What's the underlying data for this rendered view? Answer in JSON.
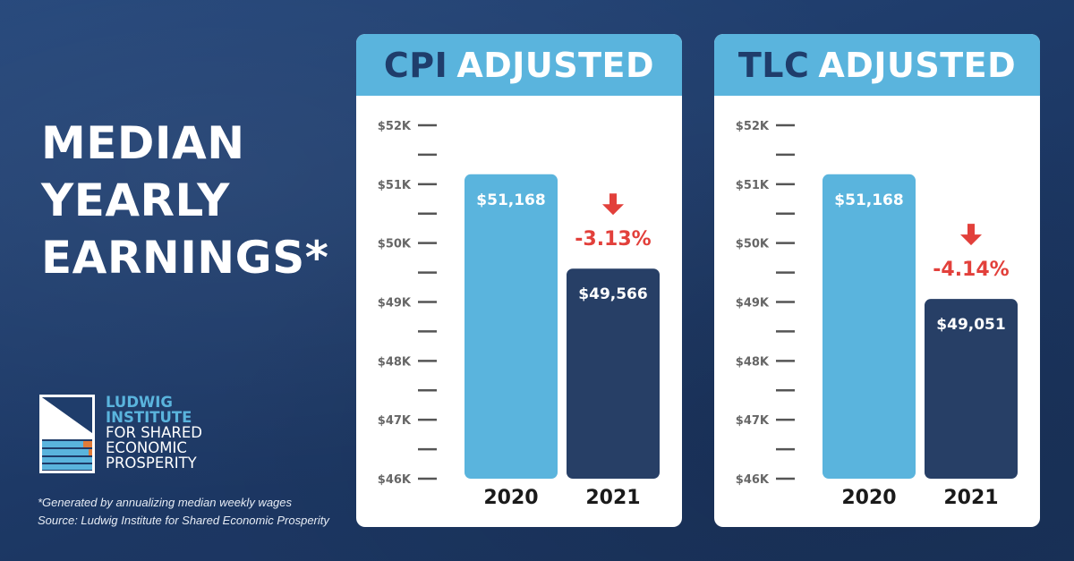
{
  "headline": [
    "MEDIAN",
    "YEARLY",
    "EARNINGS*"
  ],
  "logo": {
    "lines": [
      "LUDWIG",
      "INSTITUTE",
      "FOR SHARED",
      "ECONOMIC",
      "PROSPERITY"
    ],
    "colors": {
      "navy": "#1f3d6b",
      "blue": "#5ab4dd",
      "orange": "#e07b39"
    }
  },
  "footnote": {
    "note": "*Generated by annualizing median weekly wages",
    "source": "Source: Ludwig Institute for Shared Economic Prosperity"
  },
  "colors": {
    "bar2020": "#5ab4dd",
    "bar2021": "#273f66",
    "decline": "#e2403b",
    "axis": "#666666"
  },
  "chart_data": [
    {
      "type": "bar",
      "title_keyword": "CPI",
      "title_rest": "ADJUSTED",
      "categories": [
        "2020",
        "2021"
      ],
      "values": [
        51168,
        49566
      ],
      "value_labels": [
        "$51,168",
        "$49,566"
      ],
      "change_label": "-3.13%",
      "ylim": [
        46000,
        52000
      ],
      "yticks": [
        {
          "value": 52000,
          "label": "$52K"
        },
        {
          "value": 51000,
          "label": "$51K"
        },
        {
          "value": 50000,
          "label": "$50K"
        },
        {
          "value": 49000,
          "label": "$49K"
        },
        {
          "value": 48000,
          "label": "$48K"
        },
        {
          "value": 47000,
          "label": "$47K"
        },
        {
          "value": 46000,
          "label": "$46K"
        }
      ]
    },
    {
      "type": "bar",
      "title_keyword": "TLC",
      "title_rest": "ADJUSTED",
      "categories": [
        "2020",
        "2021"
      ],
      "values": [
        51168,
        49051
      ],
      "value_labels": [
        "$51,168",
        "$49,051"
      ],
      "change_label": "-4.14%",
      "ylim": [
        46000,
        52000
      ],
      "yticks": [
        {
          "value": 52000,
          "label": "$52K"
        },
        {
          "value": 51000,
          "label": "$51K"
        },
        {
          "value": 50000,
          "label": "$50K"
        },
        {
          "value": 49000,
          "label": "$49K"
        },
        {
          "value": 48000,
          "label": "$48K"
        },
        {
          "value": 47000,
          "label": "$47K"
        },
        {
          "value": 46000,
          "label": "$46K"
        }
      ]
    }
  ]
}
